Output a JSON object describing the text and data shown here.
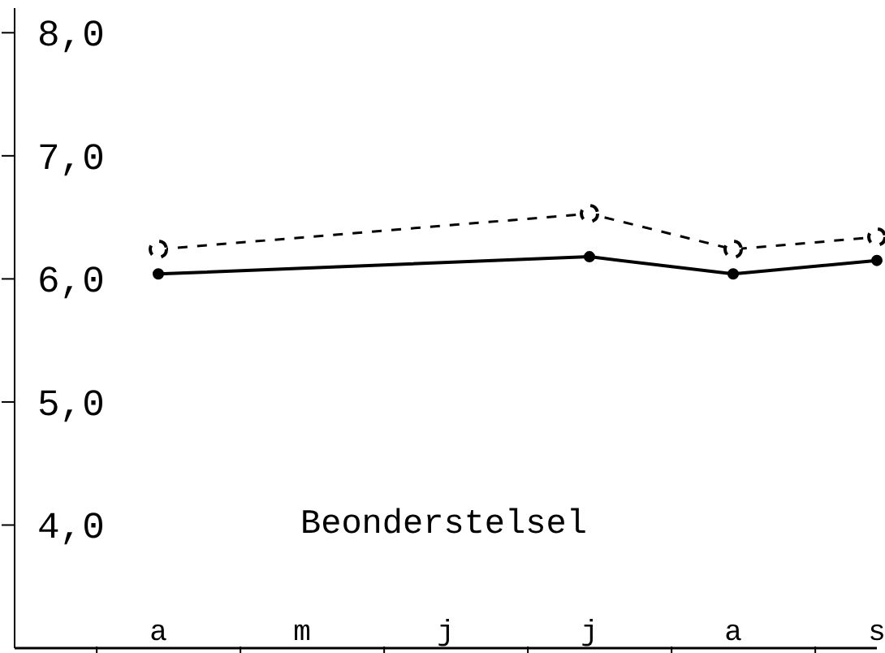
{
  "chart_data": {
    "type": "line",
    "categories": [
      null,
      "a",
      "m",
      "j",
      "j",
      "a",
      "s"
    ],
    "series": [
      {
        "color": "#000000",
        "values": [
          null,
          6.24,
          null,
          null,
          6.53,
          6.24,
          6.34
        ],
        "line_style": "dashed",
        "marker": "circle"
      },
      {
        "color": "#000000",
        "values": [
          null,
          6.04,
          null,
          null,
          6.18,
          6.04,
          6.15
        ],
        "line_style": "solid",
        "marker": "circle"
      }
    ],
    "ylim": [
      3.0,
      8.2
    ],
    "yticks": [
      {
        "value": 4,
        "label": "4,0"
      },
      {
        "value": 5,
        "label": "5,0"
      },
      {
        "value": 6,
        "label": "6,0"
      },
      {
        "value": 7,
        "label": "7,0"
      },
      {
        "value": 8,
        "label": "8,0"
      }
    ],
    "annotations": [
      "Beonderstelsel"
    ],
    "grid": false,
    "legend": false
  }
}
